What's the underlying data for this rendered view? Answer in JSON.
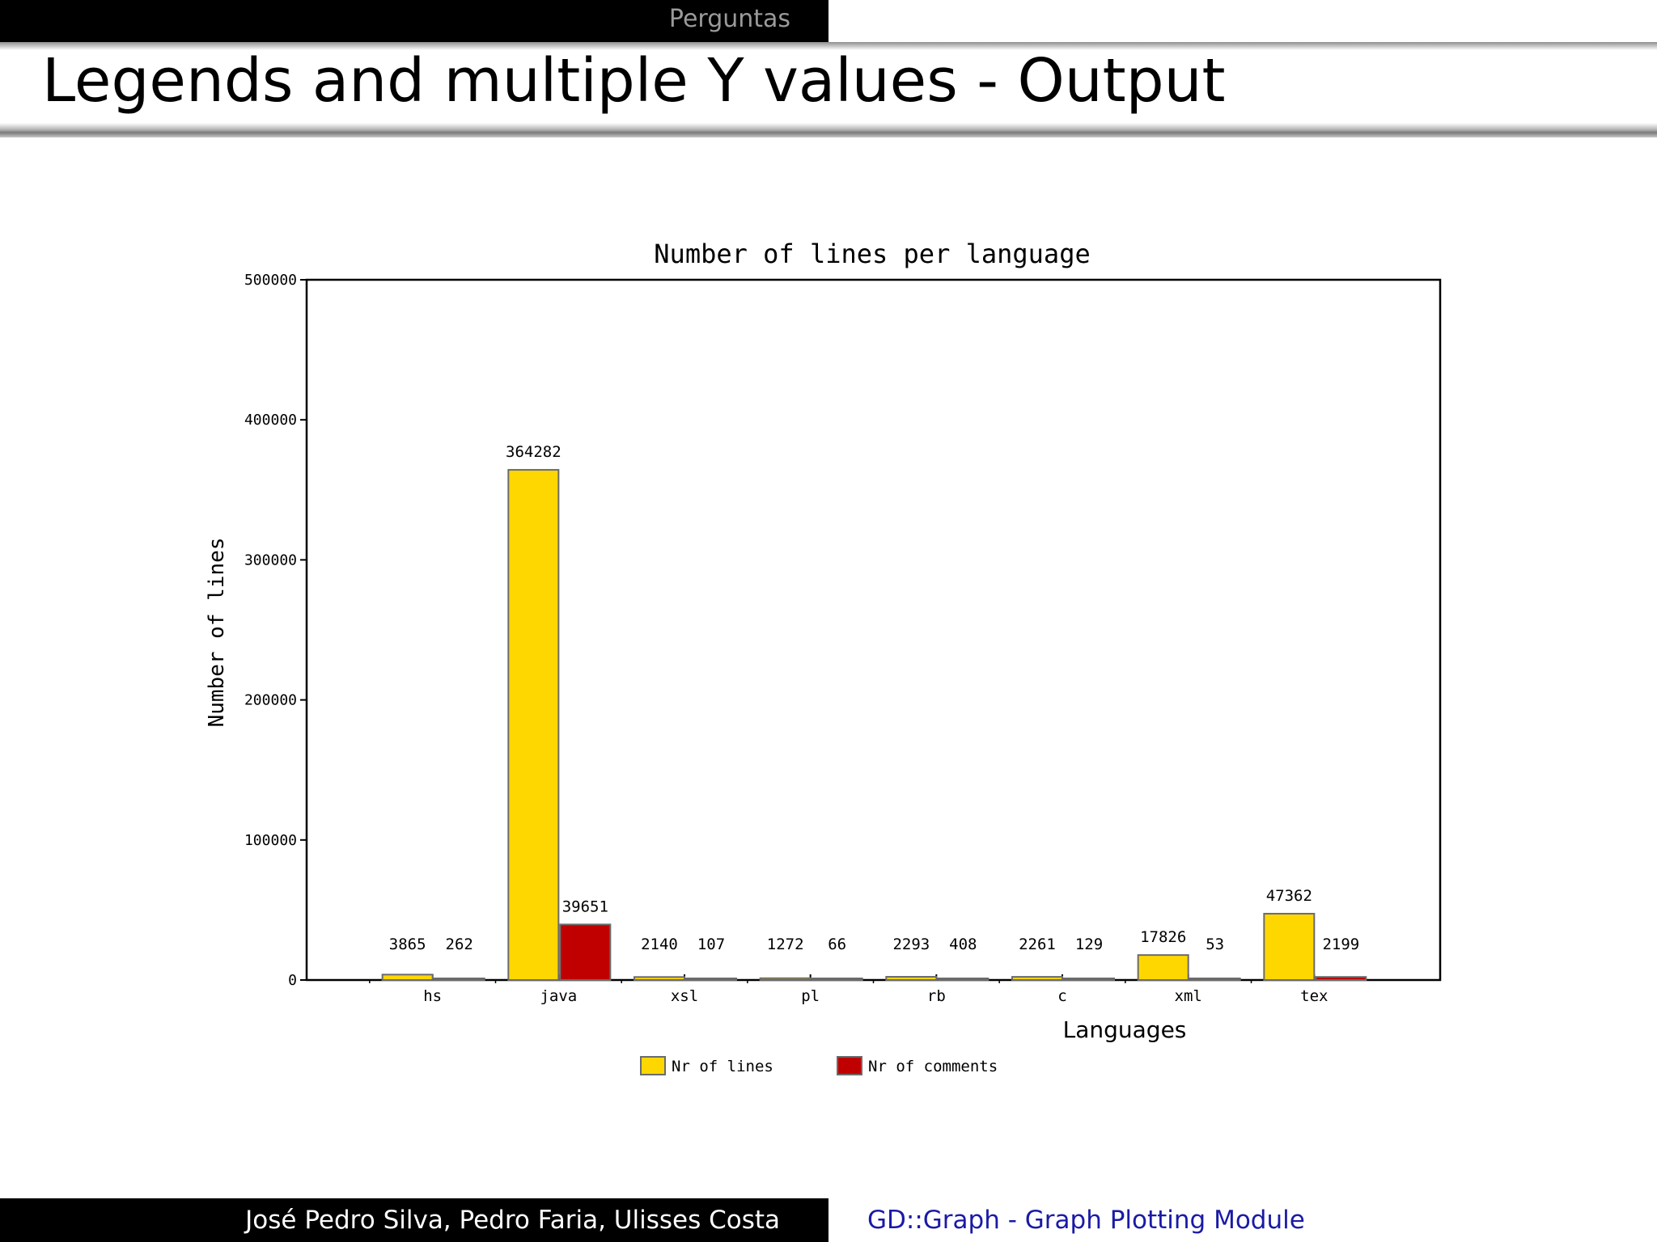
{
  "header": {
    "section": "Perguntas"
  },
  "slide": {
    "title": "Legends and multiple Y values - Output"
  },
  "footer": {
    "authors": "José Pedro Silva, Pedro Faria, Ulisses Costa",
    "talk_title": "GD::Graph - Graph Plotting Module"
  },
  "colors": {
    "lines": "#FFD700",
    "comments": "#C00000",
    "axis": "#000000"
  },
  "chart_data": {
    "type": "bar",
    "title": "Number of lines per language",
    "xlabel": "Languages",
    "ylabel": "Number of lines",
    "ylim": [
      0,
      500000
    ],
    "yticks": [
      "0",
      "100000",
      "200000",
      "300000",
      "400000",
      "500000"
    ],
    "categories": [
      "hs",
      "java",
      "xsl",
      "pl",
      "rb",
      "c",
      "xml",
      "tex"
    ],
    "series": [
      {
        "name": "Nr of lines",
        "values": [
          3865,
          364282,
          2140,
          1272,
          2293,
          2261,
          17826,
          47362
        ]
      },
      {
        "name": "Nr of comments",
        "values": [
          262,
          39651,
          107,
          66,
          408,
          129,
          53,
          2199
        ]
      }
    ],
    "legend": "bottom",
    "grid": false
  }
}
